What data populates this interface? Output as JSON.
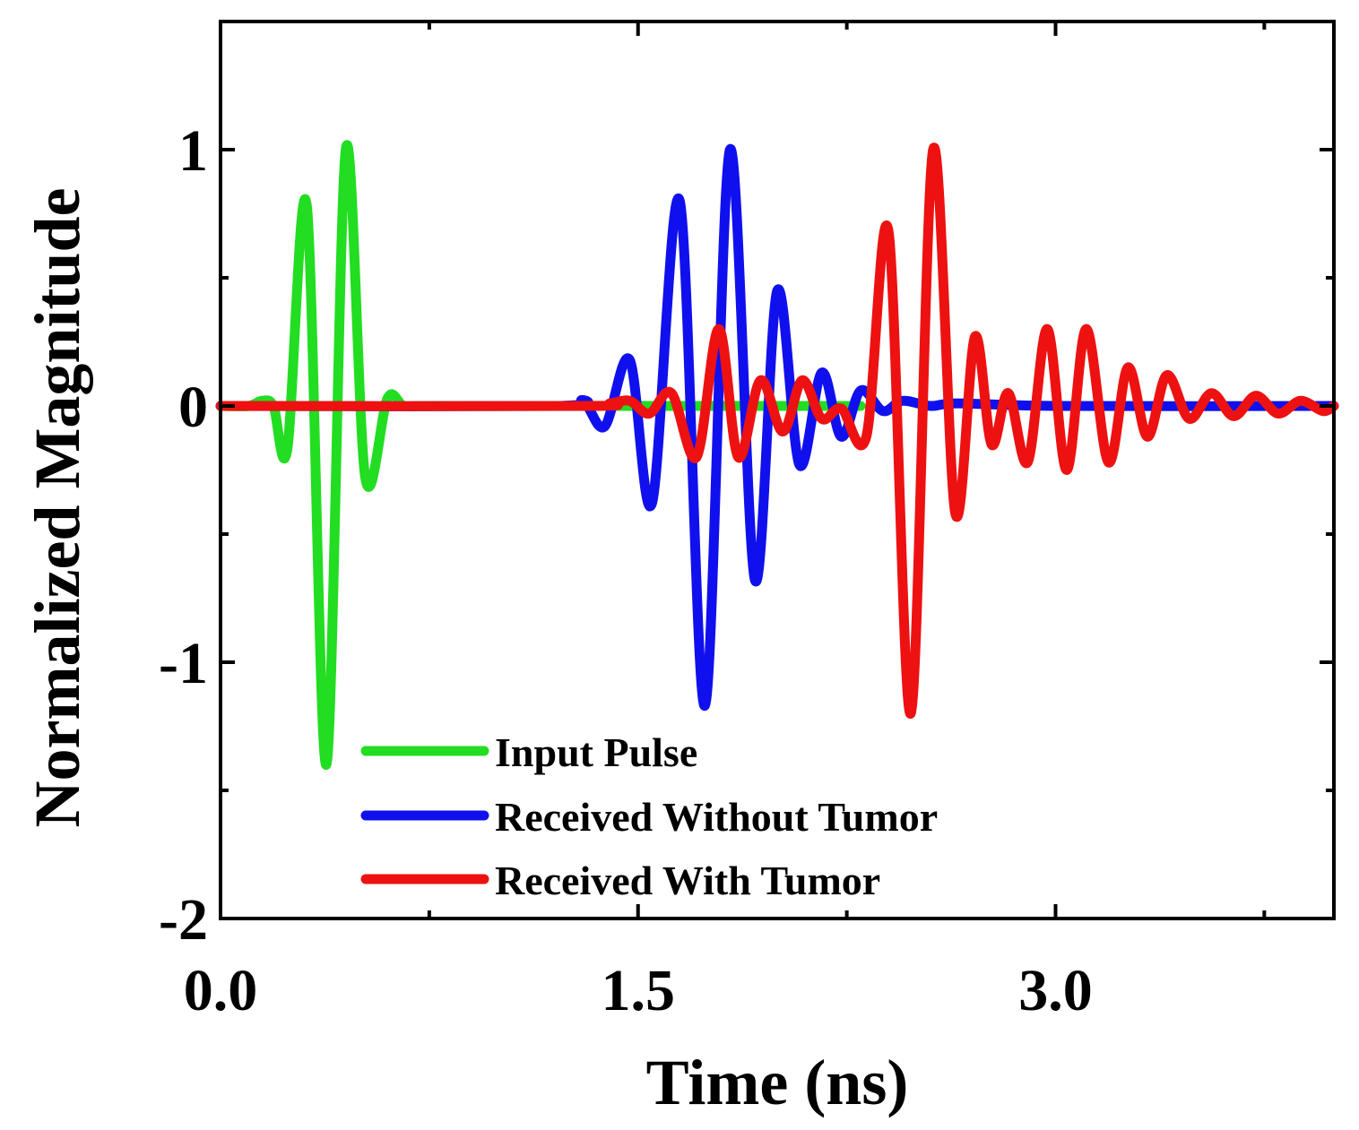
{
  "chart_data": {
    "type": "line",
    "title": "",
    "xlabel": "Time (ns)",
    "ylabel": "Normalized Magnitude",
    "xlim": [
      0,
      4.0
    ],
    "ylim": [
      -2,
      1.5
    ],
    "x_ticks": [
      0.0,
      0.75,
      1.5,
      2.25,
      3.0,
      3.75
    ],
    "x_tick_labels": [
      "0.0",
      "",
      "1.5",
      "",
      "3.0",
      ""
    ],
    "y_ticks": [
      -2,
      -1.5,
      -1,
      -0.5,
      0,
      0.5,
      1,
      1.5
    ],
    "y_tick_labels": [
      "-2",
      "",
      "-1",
      "",
      "0",
      "",
      "1",
      ""
    ],
    "grid": false,
    "legend_position": "bottom-center",
    "series": [
      {
        "name": "Input Pulse",
        "color": "#22dd22",
        "x": [
          0.0,
          0.1,
          0.15,
          0.19,
          0.24,
          0.31,
          0.38,
          0.45,
          0.52,
          0.6,
          0.66,
          0.75,
          1.2,
          2.3
        ],
        "y": [
          0.0,
          0.0,
          0.02,
          0.0,
          -0.17,
          0.78,
          -1.4,
          1.0,
          -0.28,
          0.03,
          0.0,
          0.0,
          0.0,
          0.0
        ]
      },
      {
        "name": "Received Without Tumor",
        "color": "#1010ee",
        "x": [
          0.0,
          1.2,
          1.3,
          1.38,
          1.47,
          1.55,
          1.65,
          1.74,
          1.83,
          1.92,
          2.0,
          2.08,
          2.16,
          2.23,
          2.3,
          2.38,
          2.45,
          2.55,
          2.65,
          3.0,
          4.0
        ],
        "y": [
          0.0,
          0.0,
          0.02,
          -0.08,
          0.18,
          -0.38,
          0.8,
          -1.17,
          1.0,
          -0.68,
          0.45,
          -0.23,
          0.13,
          -0.12,
          0.06,
          -0.02,
          0.02,
          0.0,
          0.01,
          0.0,
          0.0
        ]
      },
      {
        "name": "Received With Tumor",
        "color": "#ee1111",
        "x": [
          0.0,
          1.3,
          1.4,
          1.47,
          1.54,
          1.62,
          1.71,
          1.79,
          1.86,
          1.94,
          2.02,
          2.09,
          2.16,
          2.23,
          2.32,
          2.4,
          2.48,
          2.56,
          2.64,
          2.71,
          2.77,
          2.83,
          2.9,
          2.97,
          3.04,
          3.11,
          3.19,
          3.26,
          3.33,
          3.4,
          3.48,
          3.56,
          3.64,
          3.72,
          3.8,
          3.88,
          3.96,
          4.0
        ],
        "y": [
          0.0,
          0.0,
          0.01,
          0.02,
          -0.03,
          0.05,
          -0.2,
          0.3,
          -0.2,
          0.1,
          -0.1,
          0.1,
          -0.05,
          -0.01,
          -0.12,
          0.68,
          -1.2,
          1.0,
          -0.42,
          0.27,
          -0.15,
          0.05,
          -0.22,
          0.3,
          -0.25,
          0.3,
          -0.22,
          0.15,
          -0.12,
          0.12,
          -0.05,
          0.05,
          -0.04,
          0.04,
          -0.03,
          0.02,
          -0.02,
          0.0
        ]
      }
    ]
  }
}
